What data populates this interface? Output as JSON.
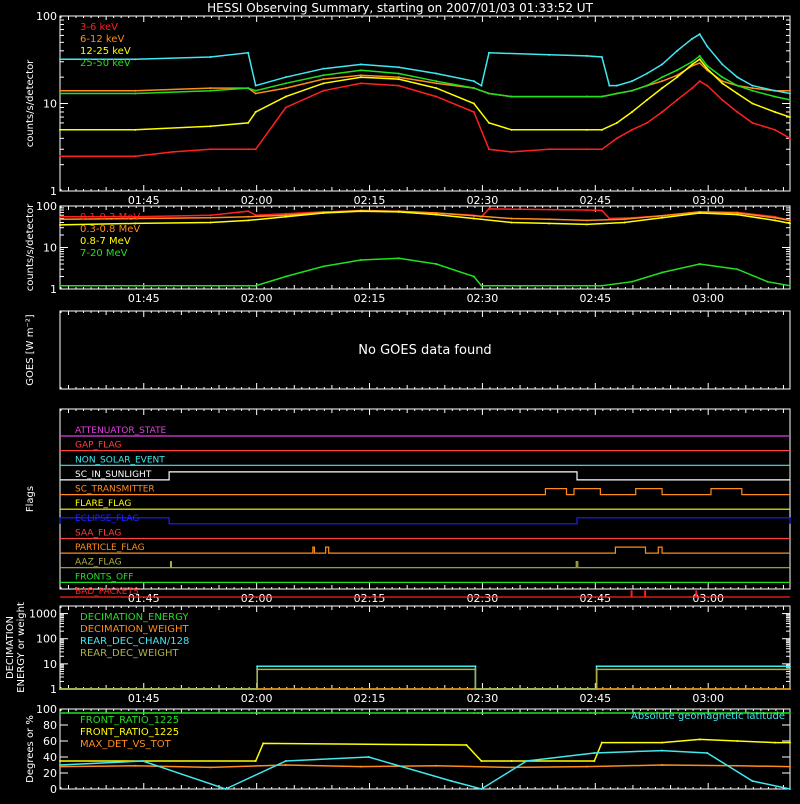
{
  "title": "HESSI Observing Summary, starting on 2007/01/03 01:33:52 UT",
  "time_ticks": [
    "01:45",
    "02:00",
    "02:15",
    "02:30",
    "02:45",
    "03:00"
  ],
  "time_tick_minutes": [
    11.13,
    26.13,
    41.13,
    56.13,
    71.13,
    86.13
  ],
  "time_range_minutes": [
    0,
    97
  ],
  "chart_data": [
    {
      "type": "line",
      "panel": "low-energy-rates",
      "ylabel": "counts/s/detector",
      "yscale": "log",
      "ylim": [
        1,
        100
      ],
      "y_tick_labels": [
        "1",
        "10",
        "100"
      ],
      "y_tick_values": [
        1,
        10,
        100
      ],
      "x_range_minutes": [
        0,
        97
      ],
      "series": [
        {
          "name": "3-6 keV",
          "color": "#ff2020",
          "x": [
            0,
            10,
            15,
            20,
            25,
            26,
            30,
            35,
            40,
            45,
            50,
            55,
            57,
            60,
            65,
            70,
            72,
            74,
            76,
            78,
            80,
            82,
            84,
            85,
            86,
            88,
            90,
            92,
            95,
            97
          ],
          "values": [
            2.5,
            2.5,
            2.8,
            3,
            3,
            3,
            9,
            14,
            17,
            16,
            12,
            8,
            3,
            2.8,
            3,
            3,
            3,
            4,
            5,
            6,
            8,
            11,
            15,
            18,
            16,
            11,
            8,
            6,
            5,
            4
          ]
        },
        {
          "name": "6-12 keV",
          "color": "#ff8c1a",
          "x": [
            0,
            10,
            20,
            25,
            26,
            30,
            35,
            40,
            45,
            50,
            55,
            57,
            60,
            70,
            72,
            74,
            76,
            78,
            80,
            82,
            84,
            85,
            86,
            88,
            90,
            92,
            95,
            97
          ],
          "values": [
            14,
            14,
            15,
            15,
            13,
            15,
            19,
            21,
            20,
            17,
            15,
            13,
            12,
            12,
            12,
            13,
            14,
            16,
            18,
            21,
            27,
            29,
            24,
            18,
            16,
            15,
            14,
            14
          ]
        },
        {
          "name": "12-25 keV",
          "color": "#ffff00",
          "x": [
            0,
            10,
            20,
            25,
            26,
            30,
            35,
            40,
            45,
            50,
            55,
            57,
            60,
            70,
            72,
            74,
            76,
            78,
            80,
            82,
            84,
            85,
            86,
            88,
            90,
            92,
            95,
            97
          ],
          "values": [
            5,
            5,
            5.5,
            6,
            8,
            12,
            17,
            20,
            19,
            15,
            10,
            6,
            5,
            5,
            5,
            6,
            8,
            11,
            15,
            20,
            28,
            32,
            25,
            17,
            13,
            10,
            8,
            7
          ]
        },
        {
          "name": "25-50 keV",
          "color": "#20e020",
          "x": [
            0,
            10,
            20,
            25,
            26,
            30,
            35,
            40,
            45,
            50,
            55,
            57,
            60,
            70,
            72,
            74,
            76,
            78,
            80,
            82,
            84,
            85,
            86,
            88,
            90,
            92,
            95,
            97
          ],
          "values": [
            13,
            13,
            14,
            15,
            14,
            17,
            21,
            24,
            22,
            18,
            15,
            13,
            12,
            12,
            12,
            13,
            14,
            16,
            20,
            24,
            30,
            35,
            27,
            20,
            16,
            14,
            12,
            11
          ]
        },
        {
          "name": "",
          "color": "#40e8f0",
          "x": [
            0,
            10,
            20,
            25,
            26,
            30,
            35,
            40,
            45,
            50,
            55,
            56,
            57,
            65,
            70,
            72,
            73,
            74,
            76,
            78,
            80,
            82,
            84,
            85,
            86,
            88,
            90,
            92,
            95,
            97
          ],
          "values": [
            32,
            32,
            34,
            38,
            16,
            20,
            25,
            28,
            26,
            22,
            18,
            16,
            38,
            36,
            35,
            34,
            16,
            16,
            18,
            22,
            28,
            40,
            55,
            62,
            45,
            28,
            20,
            16,
            14,
            13
          ]
        }
      ]
    },
    {
      "type": "line",
      "panel": "high-energy-rates",
      "ylabel": "counts/s/detector",
      "yscale": "log",
      "ylim": [
        1,
        100
      ],
      "y_tick_labels": [
        "1",
        "10",
        "100"
      ],
      "y_tick_values": [
        1,
        10,
        100
      ],
      "x_range_minutes": [
        0,
        97
      ],
      "series": [
        {
          "name": "0.1-0.3 MeV",
          "color": "#ff2020",
          "x": [
            0,
            10,
            20,
            25,
            26,
            30,
            35,
            40,
            45,
            50,
            55,
            56,
            57,
            65,
            70,
            72,
            73,
            76,
            80,
            85,
            90,
            95,
            97
          ],
          "values": [
            55,
            55,
            60,
            75,
            60,
            65,
            72,
            76,
            74,
            68,
            60,
            55,
            85,
            82,
            80,
            78,
            50,
            52,
            58,
            72,
            70,
            55,
            45
          ]
        },
        {
          "name": "0.3-0.8 MeV",
          "color": "#ff8c1a",
          "x": [
            0,
            10,
            20,
            25,
            30,
            35,
            40,
            45,
            50,
            55,
            60,
            65,
            70,
            75,
            80,
            85,
            90,
            95,
            97
          ],
          "values": [
            48,
            50,
            52,
            55,
            60,
            70,
            78,
            75,
            68,
            58,
            50,
            48,
            45,
            48,
            58,
            72,
            68,
            52,
            45
          ]
        },
        {
          "name": "0.8-7 MeV",
          "color": "#ffff00",
          "x": [
            0,
            10,
            20,
            25,
            30,
            35,
            40,
            45,
            50,
            55,
            60,
            65,
            70,
            75,
            80,
            85,
            90,
            95,
            97
          ],
          "values": [
            35,
            38,
            40,
            45,
            55,
            68,
            75,
            72,
            62,
            50,
            40,
            38,
            36,
            40,
            52,
            68,
            62,
            45,
            38
          ]
        },
        {
          "name": "7-20 MeV",
          "color": "#20e020",
          "x": [
            0,
            10,
            20,
            25,
            26,
            30,
            35,
            40,
            45,
            50,
            55,
            56,
            70,
            72,
            76,
            80,
            85,
            90,
            94,
            97
          ],
          "values": [
            1.2,
            1.2,
            1.2,
            1.2,
            1.2,
            2,
            3.5,
            5,
            5.5,
            4,
            2,
            1.2,
            1.2,
            1.2,
            1.5,
            2.5,
            4,
            3,
            1.5,
            1.2
          ]
        }
      ]
    },
    {
      "type": "line",
      "panel": "goes",
      "ylabel": "GOES [W m⁻²]",
      "message": "No GOES data found",
      "x_range_minutes": [
        0,
        97
      ],
      "series": []
    },
    {
      "type": "line",
      "panel": "flags",
      "ylabel": "Flags",
      "x_range_minutes": [
        0,
        97
      ],
      "flags": [
        {
          "name": "ATTENUATOR_STATE",
          "color": "#e040e0",
          "segments": []
        },
        {
          "name": "GAP_FLAG",
          "color": "#ff4040",
          "segments": []
        },
        {
          "name": "NON_SOLAR_EVENT",
          "color": "#40e8f0",
          "segments": []
        },
        {
          "name": "SC_IN_SUNLIGHT",
          "color": "#ffffff",
          "segments": [
            [
              14.5,
              68.7
            ]
          ],
          "invert": true
        },
        {
          "name": "SC_TRANSMITTER",
          "color": "#ff8c1a",
          "segments": [
            [
              64.5,
              67.3
            ],
            [
              68.3,
              71.8
            ],
            [
              76.5,
              80
            ],
            [
              86.5,
              90.6
            ]
          ]
        },
        {
          "name": "FLARE_FLAG",
          "color": "#ffff00",
          "segments": []
        },
        {
          "name": "ECLIPSE_FLAG",
          "color": "#2020ff",
          "segments": [
            [
              0,
              14.5
            ],
            [
              68.7,
              97
            ]
          ]
        },
        {
          "name": "SAA_FLAG",
          "color": "#ff4040",
          "segments": []
        },
        {
          "name": "PARTICLE_FLAG",
          "color": "#ff8c1a",
          "segments": [
            [
              33.6,
              33.8
            ],
            [
              35.3,
              35.7
            ],
            [
              73.8,
              77.8
            ],
            [
              79.5,
              80
            ]
          ]
        },
        {
          "name": "AAZ_FLAG",
          "color": "#b0b040",
          "segments": [
            [
              14.7,
              14.8
            ],
            [
              68.6,
              68.8
            ]
          ]
        },
        {
          "name": "FRONTS_OFF",
          "color": "#20e020",
          "segments": []
        },
        {
          "name": "BAD_PACKETS",
          "color": "#ff2020",
          "segments": [
            [
              75.9,
              76
            ],
            [
              77.7,
              77.8
            ],
            [
              84.5,
              84.6
            ]
          ]
        }
      ]
    },
    {
      "type": "line",
      "panel": "decimation",
      "ylabel": "DECIMATION\nENERGY or weight",
      "yscale": "log",
      "ylim": [
        1,
        2000
      ],
      "y_tick_labels": [
        "1",
        "10",
        "100",
        "1000"
      ],
      "y_tick_values": [
        1,
        10,
        100,
        1000
      ],
      "x_range_minutes": [
        0,
        97
      ],
      "series": [
        {
          "name": "DECIMATION_ENERGY",
          "color": "#20e020",
          "x": [
            0,
            97
          ],
          "values": [
            1,
            1
          ]
        },
        {
          "name": "DECIMATION_WEIGHT",
          "color": "#ff8c1a",
          "x": [
            0,
            97
          ],
          "values": [
            1,
            1
          ]
        },
        {
          "name": "REAR_DEC_CHAN/128",
          "color": "#40e8f0",
          "x": [
            0,
            26.2,
            26.2,
            55.2,
            55.2,
            71.3,
            71.3,
            97
          ],
          "values": [
            1,
            1,
            8,
            8,
            1,
            1,
            8,
            8
          ]
        },
        {
          "name": "REAR_DEC_WEIGHT",
          "color": "#b0b040",
          "x": [
            0,
            26.2,
            26.2,
            55.2,
            55.2,
            71.3,
            71.3,
            97
          ],
          "values": [
            1,
            1,
            6,
            6,
            1,
            1,
            6,
            6
          ]
        }
      ]
    },
    {
      "type": "line",
      "panel": "ratios",
      "ylabel": "Degrees or %",
      "ylim": [
        0,
        100
      ],
      "y_tick_labels": [
        "0",
        "20",
        "40",
        "60",
        "80",
        "100"
      ],
      "y_tick_values": [
        0,
        20,
        40,
        60,
        80,
        100
      ],
      "x_range_minutes": [
        0,
        97
      ],
      "annotation": "Absolute geomagnetic latitude",
      "series": [
        {
          "name": "FRONT_RATIO_1225",
          "color": "#20e020",
          "x": [
            0,
            25.5,
            26,
            26.5,
            55,
            55.5,
            56,
            70.5,
            71,
            72,
            95,
            96,
            97
          ],
          "values": [
            95,
            95,
            95,
            95,
            95,
            95,
            95,
            95,
            95,
            95,
            95,
            95,
            95
          ]
        },
        {
          "name": "FRONT_RATIO_1225",
          "color": "#ffff00",
          "x": [
            0,
            26,
            27,
            54,
            56,
            60,
            71,
            72,
            80,
            85,
            90,
            95,
            97
          ],
          "values": [
            35,
            35,
            57,
            55,
            35,
            35,
            35,
            58,
            58,
            62,
            60,
            58,
            58
          ]
        },
        {
          "name": "MAX_DET_VS_TOT",
          "color": "#ff8c1a",
          "x": [
            0,
            10,
            20,
            30,
            40,
            50,
            60,
            70,
            80,
            90,
            97
          ],
          "values": [
            28,
            29,
            27,
            30,
            28,
            29,
            27,
            28,
            30,
            29,
            28
          ]
        },
        {
          "name": "",
          "color": "#40e8f0",
          "x": [
            0,
            11,
            22,
            30,
            41,
            52,
            56,
            62,
            71,
            80,
            86,
            92,
            97
          ],
          "values": [
            30,
            35,
            0,
            35,
            40,
            10,
            0,
            35,
            45,
            48,
            45,
            10,
            0
          ]
        }
      ]
    }
  ]
}
